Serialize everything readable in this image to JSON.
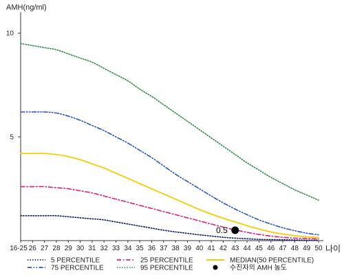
{
  "chart_data": {
    "type": "line",
    "title": "",
    "ylabel": "AMH(ng/ml)",
    "xlabel": "나이",
    "ylim": [
      0,
      11
    ],
    "xlim": [
      0,
      25
    ],
    "yticks": [
      5,
      10
    ],
    "categories": [
      "16-25",
      "26",
      "27",
      "28",
      "29",
      "30",
      "31",
      "32",
      "33",
      "34",
      "35",
      "36",
      "37",
      "38",
      "39",
      "40",
      "41",
      "42",
      "43",
      "44",
      "45",
      "46",
      "47",
      "48",
      "49",
      "50"
    ],
    "series": [
      {
        "name": "5 PERCENTILE",
        "color": "#0a1a66",
        "dash": "dot",
        "values": [
          1.2,
          1.2,
          1.2,
          1.2,
          1.15,
          1.1,
          1.05,
          1.0,
          0.9,
          0.8,
          0.7,
          0.6,
          0.5,
          0.42,
          0.35,
          0.28,
          0.22,
          0.16,
          0.12,
          0.09,
          0.06,
          0.05,
          0.04,
          0.03,
          0.02,
          0.02
        ]
      },
      {
        "name": "25 PERCENTILE",
        "color": "#e0197a",
        "dash": "dashdot",
        "values": [
          2.6,
          2.6,
          2.6,
          2.55,
          2.5,
          2.4,
          2.3,
          2.15,
          2.0,
          1.85,
          1.7,
          1.55,
          1.4,
          1.25,
          1.1,
          0.95,
          0.8,
          0.65,
          0.52,
          0.4,
          0.3,
          0.22,
          0.16,
          0.12,
          0.1,
          0.08
        ]
      },
      {
        "name": "MEDIAN(50 PERCENTILE)",
        "color": "#f5cc00",
        "dash": "solid",
        "values": [
          4.2,
          4.2,
          4.2,
          4.15,
          4.05,
          3.9,
          3.7,
          3.5,
          3.25,
          3.0,
          2.75,
          2.5,
          2.25,
          2.0,
          1.75,
          1.5,
          1.28,
          1.08,
          0.9,
          0.72,
          0.56,
          0.42,
          0.32,
          0.24,
          0.18,
          0.15
        ]
      },
      {
        "name": "75 PERCENTILE",
        "color": "#2a52c8",
        "dash": "dashdotdot",
        "values": [
          6.2,
          6.2,
          6.2,
          6.15,
          6.0,
          5.8,
          5.55,
          5.3,
          5.0,
          4.7,
          4.35,
          4.0,
          3.6,
          3.2,
          2.85,
          2.5,
          2.15,
          1.82,
          1.52,
          1.25,
          1.0,
          0.8,
          0.62,
          0.48,
          0.36,
          0.28
        ]
      },
      {
        "name": "95 PERCENTILE",
        "color": "#2e8a4a",
        "dash": "dot",
        "values": [
          9.5,
          9.4,
          9.3,
          9.2,
          9.0,
          8.8,
          8.6,
          8.3,
          8.0,
          7.7,
          7.3,
          6.95,
          6.55,
          6.15,
          5.75,
          5.35,
          4.95,
          4.55,
          4.15,
          3.75,
          3.4,
          3.05,
          2.75,
          2.45,
          2.2,
          1.95
        ]
      }
    ],
    "marker": {
      "label": "수진자의 AMH 농도",
      "x_index": 18,
      "x_label": "43",
      "value": 0.5,
      "value_text": "0.5",
      "color": "#000000"
    },
    "legend": {
      "placement": "bottom",
      "items": [
        "5 PERCENTILE",
        "75 PERCENTILE",
        "25 PERCENTILE",
        "95 PERCENTILE",
        "MEDIAN(50 PERCENTILE)",
        "수진자의 AMH 농도"
      ]
    }
  }
}
